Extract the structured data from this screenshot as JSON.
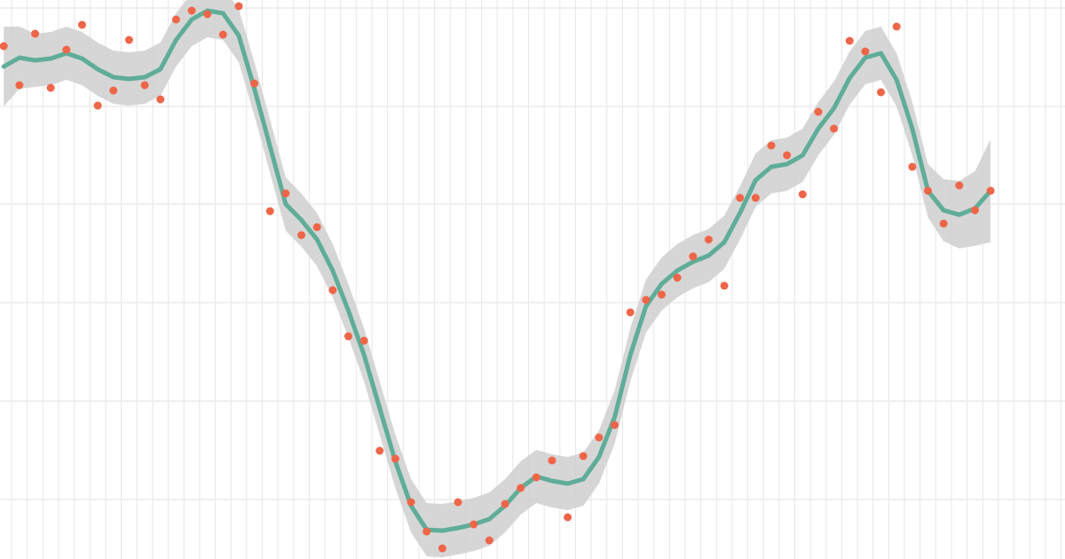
{
  "chart_data": {
    "type": "smooth-scatter",
    "xlim": [
      -0.74,
      67.25
    ],
    "ylim": [
      0,
      630
    ],
    "xticks": [
      0,
      1,
      2,
      3,
      4,
      5,
      6,
      7,
      8,
      9,
      10,
      11,
      12,
      13,
      14,
      15,
      16,
      17,
      18,
      19,
      20,
      21,
      22,
      23,
      24,
      25,
      26,
      27,
      28,
      29,
      30,
      31,
      32,
      33,
      34,
      35,
      36,
      37,
      38,
      39,
      40,
      41,
      42,
      43,
      44,
      45,
      46,
      47,
      48,
      49,
      50,
      51,
      52,
      53,
      54,
      55,
      56,
      57,
      58,
      59,
      60,
      61,
      62,
      63,
      64,
      65,
      66,
      67
    ],
    "yticks": [
      67,
      178,
      289,
      400,
      510,
      621
    ],
    "grid": true,
    "x": [
      -0.5,
      0.5,
      1.5,
      2.5,
      3.5,
      4.5,
      5.5,
      6.5,
      7.5,
      8.5,
      9.5,
      10.5,
      11.5,
      12.5,
      13.5,
      14.5,
      15.5,
      16.5,
      17.5,
      18.5,
      19.5,
      20.5,
      21.5,
      22.5,
      23.5,
      24.5,
      25.5,
      26.5,
      27.5,
      28.5,
      29.5,
      30.5,
      31.5,
      32.5,
      33.5,
      34.5,
      35.5,
      36.5,
      37.5,
      38.5,
      39.5,
      40.5,
      41.5,
      42.5,
      43.5,
      44.5,
      45.5,
      46.5,
      47.5,
      48.5,
      49.5,
      50.5,
      51.5,
      52.5,
      53.5,
      54.5,
      55.5,
      56.5,
      57.5,
      58.5,
      59.5,
      60.5,
      61.5,
      62.5
    ],
    "point_color": "#ef6548",
    "point_values": [
      578,
      534,
      592,
      531,
      574,
      602,
      511,
      528,
      585,
      534,
      518,
      608,
      618,
      614,
      591,
      623,
      536,
      392,
      412,
      365,
      374,
      303,
      251,
      246,
      122,
      113,
      64,
      31,
      12,
      64,
      39,
      21,
      62,
      80,
      92,
      111,
      47,
      116,
      137,
      151,
      278,
      292,
      298,
      317,
      341,
      360,
      308,
      407,
      407,
      466,
      455,
      411,
      504,
      485,
      584,
      572,
      526,
      600,
      442,
      415,
      378,
      421,
      393,
      415
    ],
    "fit_color": "#5fad98",
    "fit_values": [
      555,
      565,
      562,
      564,
      570,
      564,
      552,
      543,
      541,
      543,
      552,
      585,
      608,
      618,
      615,
      590,
      530,
      465,
      400,
      382,
      360,
      325,
      280,
      230,
      170,
      110,
      60,
      33,
      32,
      35,
      39,
      45,
      60,
      80,
      93,
      88,
      85,
      90,
      115,
      160,
      230,
      285,
      310,
      325,
      335,
      342,
      357,
      390,
      427,
      442,
      445,
      455,
      485,
      508,
      542,
      565,
      570,
      540,
      485,
      415,
      393,
      388,
      395,
      415
    ],
    "band_color": "#cfcfcf",
    "band_upper": [
      600,
      600,
      592,
      594,
      600,
      594,
      582,
      573,
      571,
      573,
      582,
      615,
      638,
      648,
      645,
      620,
      560,
      495,
      430,
      412,
      390,
      355,
      310,
      260,
      200,
      140,
      90,
      63,
      62,
      65,
      69,
      75,
      90,
      110,
      123,
      118,
      115,
      120,
      145,
      190,
      260,
      315,
      340,
      355,
      365,
      372,
      387,
      420,
      457,
      472,
      475,
      485,
      515,
      538,
      572,
      595,
      600,
      570,
      515,
      445,
      428,
      426,
      437,
      473
    ],
    "band_lower": [
      510,
      530,
      532,
      534,
      540,
      534,
      522,
      513,
      511,
      513,
      522,
      555,
      578,
      588,
      585,
      560,
      500,
      435,
      370,
      352,
      330,
      295,
      250,
      200,
      140,
      80,
      30,
      3,
      2,
      5,
      9,
      15,
      30,
      50,
      63,
      58,
      55,
      60,
      85,
      130,
      200,
      255,
      280,
      295,
      305,
      312,
      327,
      360,
      397,
      412,
      415,
      425,
      455,
      478,
      512,
      535,
      540,
      510,
      455,
      385,
      358,
      350,
      353,
      357
    ]
  }
}
